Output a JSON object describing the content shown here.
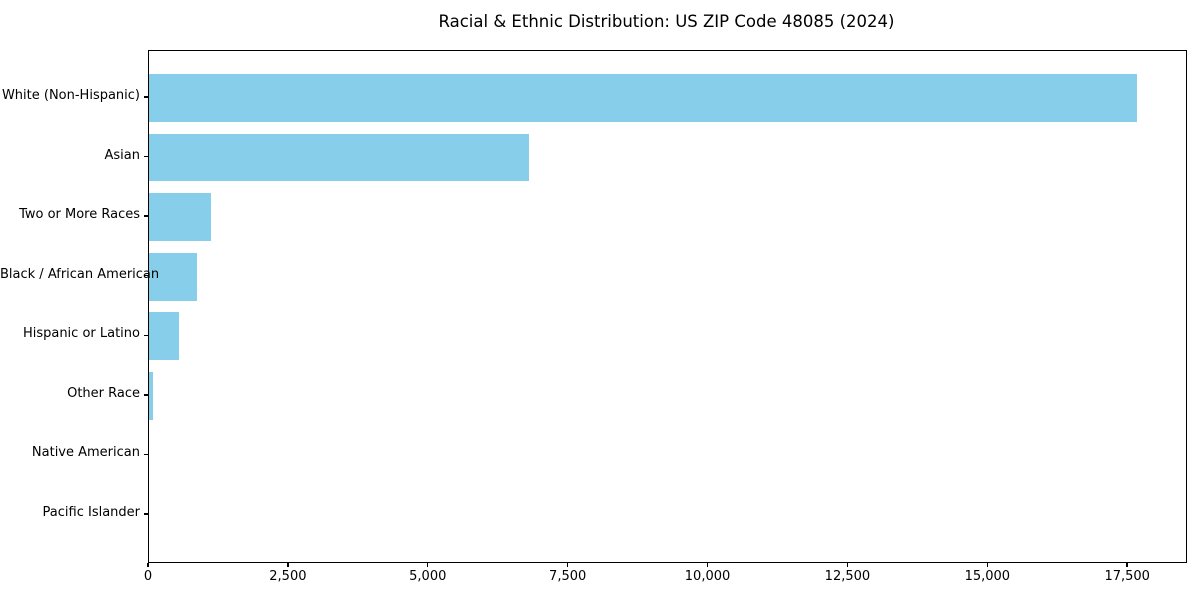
{
  "chart_data": {
    "type": "bar",
    "orientation": "horizontal",
    "title": "Racial & Ethnic Distribution: US ZIP Code 48085 (2024)",
    "categories": [
      "White (Non-Hispanic)",
      "Asian",
      "Two or More Races",
      "Black / African American",
      "Hispanic or Latino",
      "Other Race",
      "Native American",
      "Pacific Islander"
    ],
    "values": [
      17650,
      6790,
      1100,
      865,
      540,
      78,
      0,
      0
    ],
    "xlabel": "",
    "ylabel": "",
    "xlim": [
      0,
      18533
    ],
    "xticks": [
      0,
      2500,
      5000,
      7500,
      10000,
      12500,
      15000,
      17500
    ],
    "xtick_labels": [
      "0",
      "2,500",
      "5,000",
      "7,500",
      "10,000",
      "12,500",
      "15,000",
      "17,500"
    ],
    "bar_color": "#87CEEB",
    "axis_color": "#000000",
    "background": "#ffffff",
    "grid": false,
    "legend": null
  }
}
